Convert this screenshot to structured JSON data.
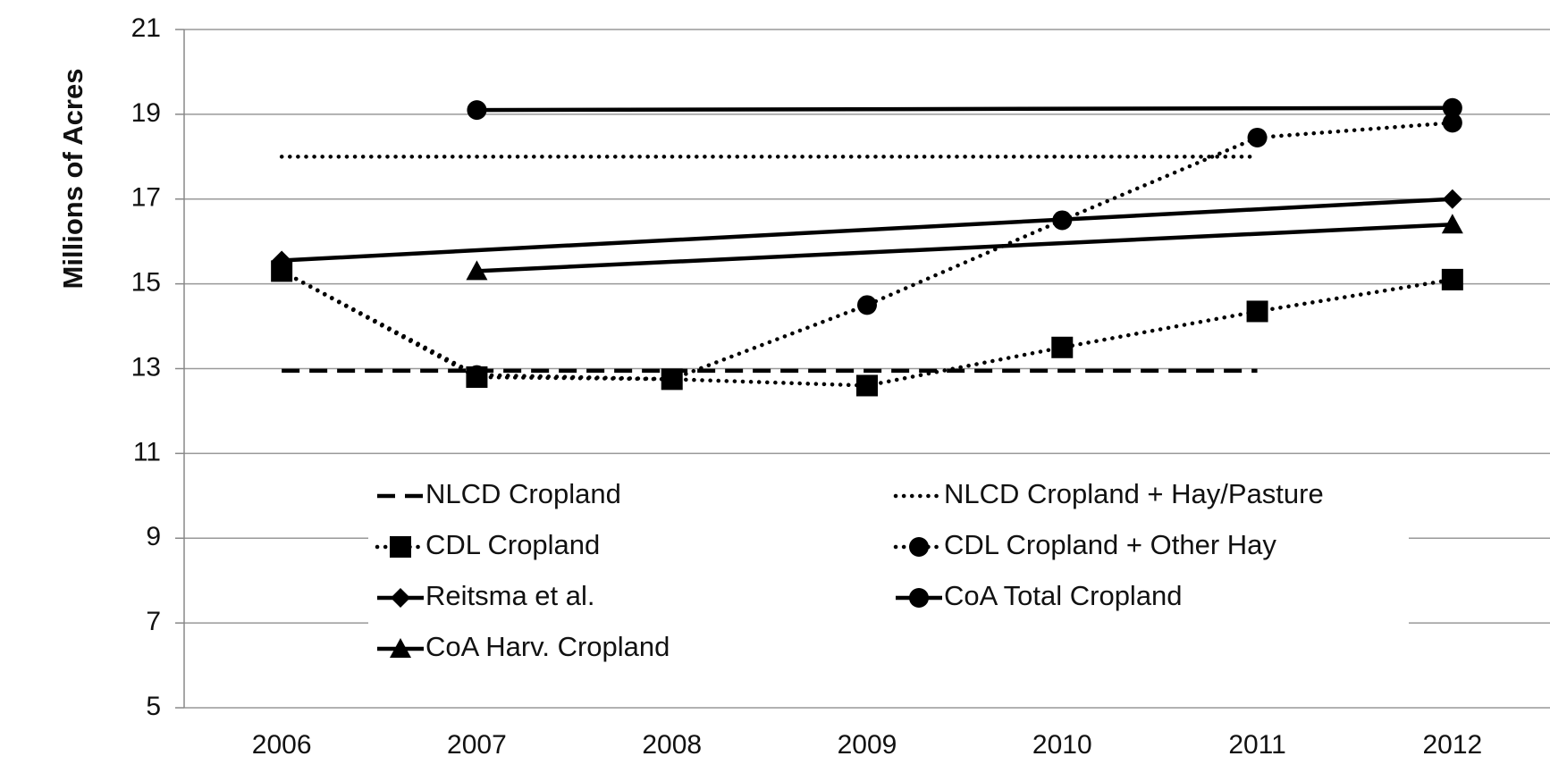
{
  "chart_data": {
    "type": "line",
    "y_label": "Millions of Acres",
    "xlim": [
      2005.5,
      2012.5
    ],
    "xticks": [
      2006,
      2007,
      2008,
      2009,
      2010,
      2011,
      2012
    ],
    "ylim": [
      5,
      21
    ],
    "yticks": [
      5,
      7,
      9,
      11,
      13,
      15,
      17,
      19,
      21
    ],
    "grid": true,
    "legend": "lower center",
    "series": [
      {
        "name": "NLCD Cropland",
        "color": "#000000",
        "dash": "dashed",
        "marker": "none",
        "x": [
          2006,
          2011
        ],
        "values": [
          12.95,
          12.95
        ]
      },
      {
        "name": "NLCD Cropland + Hay/Pasture",
        "color": "#000000",
        "dash": "dotted",
        "marker": "none",
        "x": [
          2006,
          2011
        ],
        "values": [
          18.0,
          18.0
        ]
      },
      {
        "name": "CDL Cropland",
        "color": "#000000",
        "dash": "dotted",
        "marker": "square",
        "x": [
          2006,
          2007,
          2008,
          2009,
          2010,
          2011,
          2012
        ],
        "values": [
          15.3,
          12.8,
          12.75,
          12.6,
          13.5,
          14.35,
          15.1
        ]
      },
      {
        "name": "CDL Cropland + Other Hay",
        "color": "#000000",
        "dash": "dotted",
        "marker": "circle",
        "x": [
          2006,
          2007,
          2008,
          2009,
          2010,
          2011,
          2012
        ],
        "values": [
          15.3,
          12.85,
          12.75,
          14.5,
          16.5,
          18.45,
          18.8
        ]
      },
      {
        "name": "Reitsma et al.",
        "color": "#000000",
        "dash": "solid",
        "marker": "diamond",
        "x": [
          2006,
          2012
        ],
        "values": [
          15.55,
          17.0
        ]
      },
      {
        "name": "CoA Total Cropland",
        "color": "#000000",
        "dash": "solid",
        "marker": "circle",
        "x": [
          2007,
          2012
        ],
        "values": [
          19.1,
          19.15
        ]
      },
      {
        "name": "CoA Harv. Cropland",
        "color": "#000000",
        "dash": "solid",
        "marker": "triangle",
        "x": [
          2007,
          2012
        ],
        "values": [
          15.3,
          16.4
        ]
      }
    ]
  }
}
